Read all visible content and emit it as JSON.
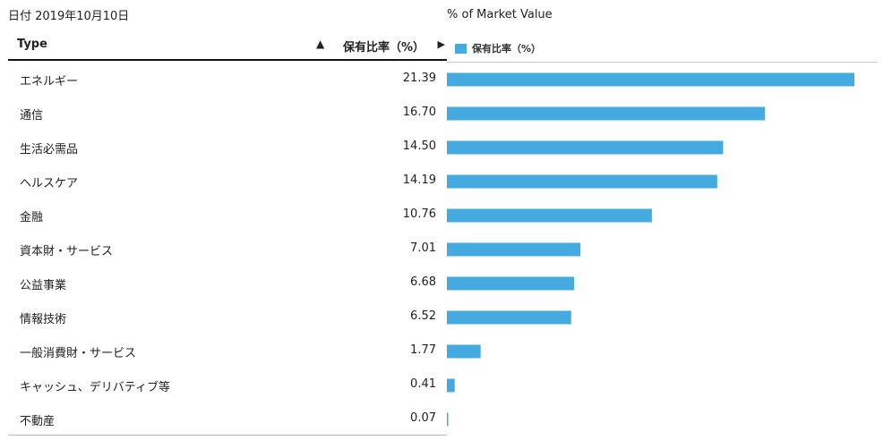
{
  "date_label": "日付 2019年10月10日",
  "table": {
    "headers": {
      "type": "Type",
      "sort": "▲",
      "value": "保有比率（%）",
      "arrow": "▶"
    },
    "rows": [
      {
        "type": "エネルギー",
        "value": "21.39"
      },
      {
        "type": "通信",
        "value": "16.70"
      },
      {
        "type": "生活必需品",
        "value": "14.50"
      },
      {
        "type": "ヘルスケア",
        "value": "14.19"
      },
      {
        "type": "金融",
        "value": "10.76"
      },
      {
        "type": "資本財・サービス",
        "value": "7.01"
      },
      {
        "type": "公益事業",
        "value": "6.68"
      },
      {
        "type": "情報技術",
        "value": "6.52"
      },
      {
        "type": "一般消費財・サービス",
        "value": "1.77"
      },
      {
        "type": "キャッシュ、デリバティブ等",
        "value": "0.41"
      },
      {
        "type": "不動産",
        "value": "0.07"
      }
    ]
  },
  "chart_data": {
    "type": "bar",
    "orientation": "horizontal",
    "title": "% of Market Value",
    "legend": "保有比率（%）",
    "legend_placement": "top-left",
    "color": "#45aae0",
    "categories": [
      "エネルギー",
      "通信",
      "生活必需品",
      "ヘルスケア",
      "金融",
      "資本財・サービス",
      "公益事業",
      "情報技術",
      "一般消費財・サービス",
      "キャッシュ、デリバティブ等",
      "不動産"
    ],
    "values": [
      21.39,
      16.7,
      14.5,
      14.19,
      10.76,
      7.01,
      6.68,
      6.52,
      1.77,
      0.41,
      0.07
    ],
    "xlim": [
      0,
      21.39
    ],
    "grid": false
  }
}
